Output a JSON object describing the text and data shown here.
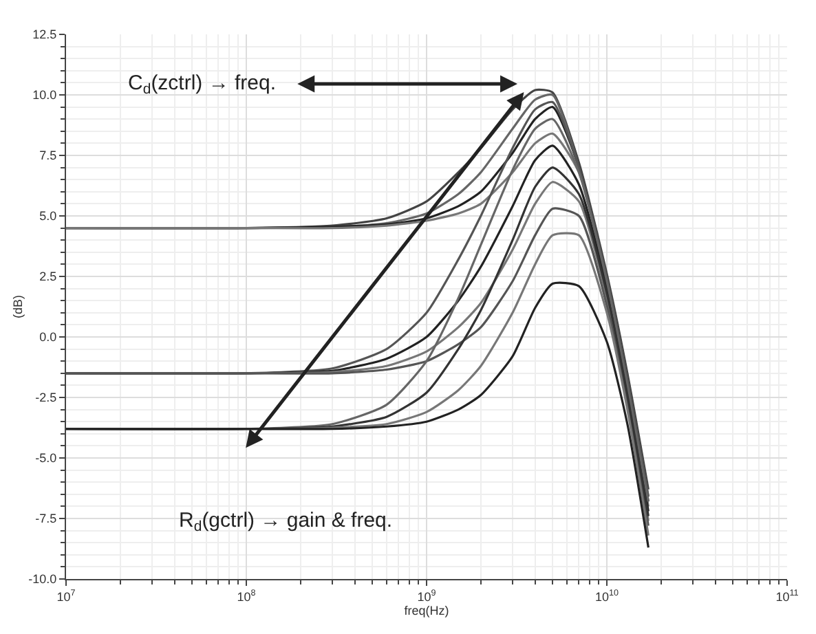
{
  "chart_data": {
    "type": "line",
    "xlabel": "freq(Hz)",
    "ylabel": "(dB)",
    "log": "x",
    "grid": true,
    "marker": "none",
    "line_style": "solid",
    "xlim": [
      10000000,
      100000000000
    ],
    "xticks": [
      {
        "value": 10000000,
        "label": "10$^{7}$"
      },
      {
        "value": 100000000,
        "label": "10$^{8}$"
      },
      {
        "value": 1000000000,
        "label": "10$^{9}$"
      },
      {
        "value": 10000000000,
        "label": "10$^{10}$"
      },
      {
        "value": 100000000000,
        "label": "10$^{11}$"
      }
    ],
    "ylim": [
      -10,
      12.5
    ],
    "yticks": [
      {
        "value": -10,
        "label": "-10.0"
      },
      {
        "value": -7.5,
        "label": "-7.5"
      },
      {
        "value": -5,
        "label": "-5.0"
      },
      {
        "value": -2.5,
        "label": "-2.5"
      },
      {
        "value": 0,
        "label": "0.0"
      },
      {
        "value": 2.5,
        "label": "2.5"
      },
      {
        "value": 5,
        "label": "5.0"
      },
      {
        "value": 7.5,
        "label": "7.5"
      },
      {
        "value": 10,
        "label": "10.0"
      },
      {
        "value": 12.5,
        "label": "12.5"
      }
    ],
    "x": [
      10000000,
      100000000,
      300000000,
      600000000,
      1000000000,
      1500000000,
      2000000000,
      3000000000,
      4000000000,
      5000000000,
      7000000000,
      10000000000,
      13000000000,
      17000000000
    ],
    "series": [
      {
        "color": "#444444",
        "values": [
          4.5,
          4.5,
          4.6,
          4.9,
          5.6,
          6.8,
          7.8,
          9.4,
          10.2,
          10.1,
          7.2,
          2.6,
          -1.5,
          -6.3
        ]
      },
      {
        "color": "#666666",
        "values": [
          4.5,
          4.5,
          4.55,
          4.7,
          5.1,
          5.9,
          6.8,
          8.6,
          9.8,
          10.0,
          7.0,
          2.4,
          -1.8,
          -6.6
        ]
      },
      {
        "color": "#222222",
        "values": [
          4.5,
          4.5,
          4.55,
          4.65,
          4.9,
          5.4,
          6.0,
          7.6,
          9.0,
          9.5,
          7.0,
          2.3,
          -2,
          -6.8
        ]
      },
      {
        "color": "#777777",
        "values": [
          4.5,
          4.5,
          4.5,
          4.6,
          4.8,
          5.1,
          5.5,
          6.8,
          8.0,
          8.4,
          6.8,
          2.2,
          -2,
          -7
        ]
      },
      {
        "color": "#555555",
        "values": [
          -1.5,
          -1.5,
          -1.3,
          -0.5,
          1,
          3.2,
          5.0,
          7.8,
          9.4,
          9.7,
          7.0,
          2.4,
          -1.8,
          -6.6
        ]
      },
      {
        "color": "#222222",
        "values": [
          -1.5,
          -1.5,
          -1.4,
          -0.9,
          0,
          1.5,
          2.9,
          5.4,
          7.3,
          7.9,
          6.3,
          2.0,
          -2.2,
          -7.2
        ]
      },
      {
        "color": "#777777",
        "values": [
          -1.5,
          -1.5,
          -1.45,
          -1.2,
          -0.6,
          0.4,
          1.4,
          3.6,
          5.5,
          6.4,
          5.6,
          1.6,
          -2.5,
          -7.6
        ]
      },
      {
        "color": "#555555",
        "values": [
          -1.5,
          -1.5,
          -1.5,
          -1.35,
          -1.0,
          -0.3,
          0.4,
          2.3,
          4.2,
          5.3,
          5.0,
          1.3,
          -2.8,
          -7.8
        ]
      },
      {
        "color": "#666666",
        "values": [
          -3.8,
          -3.8,
          -3.6,
          -2.8,
          -1,
          1.6,
          3.8,
          6.9,
          8.6,
          9.0,
          6.8,
          2.3,
          -2,
          -6.8
        ]
      },
      {
        "color": "#333333",
        "values": [
          -3.8,
          -3.8,
          -3.7,
          -3.3,
          -2.3,
          -0.5,
          1.1,
          4.0,
          6.2,
          7.0,
          5.9,
          1.8,
          -2.4,
          -7.4
        ]
      },
      {
        "color": "#777777",
        "values": [
          -3.8,
          -3.8,
          -3.75,
          -3.6,
          -3.1,
          -2.2,
          -1.2,
          1.0,
          3.0,
          4.2,
          4.2,
          1.0,
          -3.0,
          -8.2
        ]
      },
      {
        "color": "#222222",
        "values": [
          -3.8,
          -3.8,
          -3.8,
          -3.7,
          -3.5,
          -3.0,
          -2.4,
          -0.8,
          1.2,
          2.2,
          2.1,
          -0.2,
          -3.6,
          -8.7
        ]
      }
    ],
    "annotations": [
      "C$_{d}$(zctrl) → freq.",
      "R$_{d}$(gctrl) → gain & freq."
    ]
  }
}
